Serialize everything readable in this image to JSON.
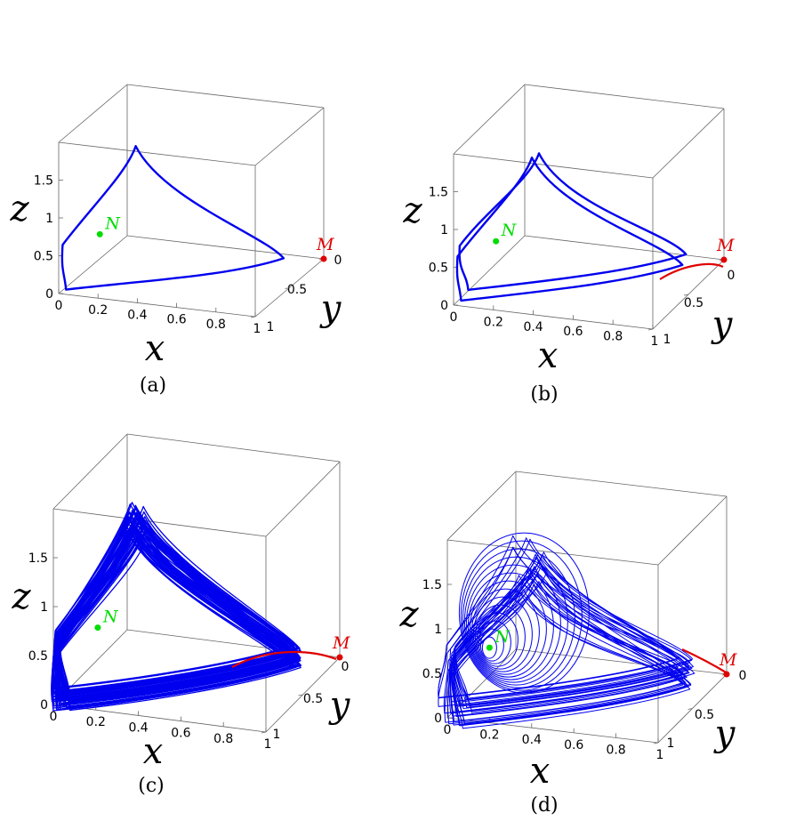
{
  "chart_data": [
    {
      "type": "line",
      "subtype": "3d-trajectory",
      "caption": "(a)",
      "xlabel": "x",
      "ylabel": "y",
      "zlabel": "z",
      "xlim": [
        0,
        1
      ],
      "ylim": [
        0,
        1
      ],
      "zlim": [
        0,
        2
      ],
      "x_ticks": [
        "0",
        "0.2",
        "0.4",
        "0.6",
        "0.8",
        "1"
      ],
      "y_ticks": [
        "0",
        "0.5",
        "1"
      ],
      "z_ticks": [
        "0",
        "0.5",
        "1",
        "1.5"
      ],
      "grid": false,
      "trajectory_color": "#0000ee",
      "trajectory": "single limit cycle",
      "points": [
        {
          "name": "M",
          "x": 1,
          "y": 0,
          "z": 0,
          "color": "#e00000"
        },
        {
          "name": "N",
          "x": 0.07,
          "y": 0.6,
          "z": 0.5,
          "color": "#00dd00"
        }
      ],
      "red_curve": false
    },
    {
      "type": "line",
      "subtype": "3d-trajectory",
      "caption": "(b)",
      "xlabel": "x",
      "ylabel": "y",
      "zlabel": "z",
      "xlim": [
        0,
        1
      ],
      "ylim": [
        0,
        1
      ],
      "zlim": [
        0,
        2
      ],
      "x_ticks": [
        "0",
        "0.2",
        "0.4",
        "0.6",
        "0.8",
        "1"
      ],
      "y_ticks": [
        "0",
        "0.5",
        "1"
      ],
      "z_ticks": [
        "0",
        "0.5",
        "1",
        "1.5"
      ],
      "grid": false,
      "trajectory_color": "#0000ee",
      "trajectory": "period-2 cycle",
      "points": [
        {
          "name": "M",
          "x": 1,
          "y": 0,
          "z": 0,
          "color": "#e00000"
        },
        {
          "name": "N",
          "x": 0.07,
          "y": 0.6,
          "z": 0.5,
          "color": "#00dd00"
        }
      ],
      "red_curve": true
    },
    {
      "type": "line",
      "subtype": "3d-trajectory",
      "caption": "(c)",
      "xlabel": "x",
      "ylabel": "y",
      "zlabel": "z",
      "xlim": [
        0,
        1
      ],
      "ylim": [
        0,
        1
      ],
      "zlim": [
        0,
        2
      ],
      "x_ticks": [
        "0",
        "0.2",
        "0.4",
        "0.6",
        "0.8",
        "1"
      ],
      "y_ticks": [
        "0",
        "0.5",
        "1"
      ],
      "z_ticks": [
        "0",
        "0.5",
        "1",
        "1.5"
      ],
      "grid": false,
      "trajectory_color": "#0000ee",
      "trajectory": "chaotic attractor",
      "points": [
        {
          "name": "M",
          "x": 1,
          "y": 0,
          "z": 0,
          "color": "#e00000"
        },
        {
          "name": "N",
          "x": 0.07,
          "y": 0.6,
          "z": 0.5,
          "color": "#00dd00"
        }
      ],
      "red_curve": true
    },
    {
      "type": "line",
      "subtype": "3d-trajectory",
      "caption": "(d)",
      "xlabel": "x",
      "ylabel": "y",
      "zlabel": "z",
      "xlim": [
        0,
        1
      ],
      "ylim": [
        0,
        1
      ],
      "zlim": [
        0,
        2
      ],
      "x_ticks": [
        "0",
        "0.2",
        "0.4",
        "0.6",
        "0.8",
        "1"
      ],
      "y_ticks": [
        "0",
        "0.5",
        "1"
      ],
      "z_ticks": [
        "0",
        "0.5",
        "1",
        "1.5"
      ],
      "grid": false,
      "trajectory_color": "#0000ee",
      "trajectory": "heteroclinic-like chaotic orbit",
      "points": [
        {
          "name": "M",
          "x": 1,
          "y": 0,
          "z": 0,
          "color": "#e00000"
        },
        {
          "name": "N",
          "x": 0.07,
          "y": 0.6,
          "z": 0.5,
          "color": "#00dd00"
        }
      ],
      "red_curve": true
    }
  ]
}
